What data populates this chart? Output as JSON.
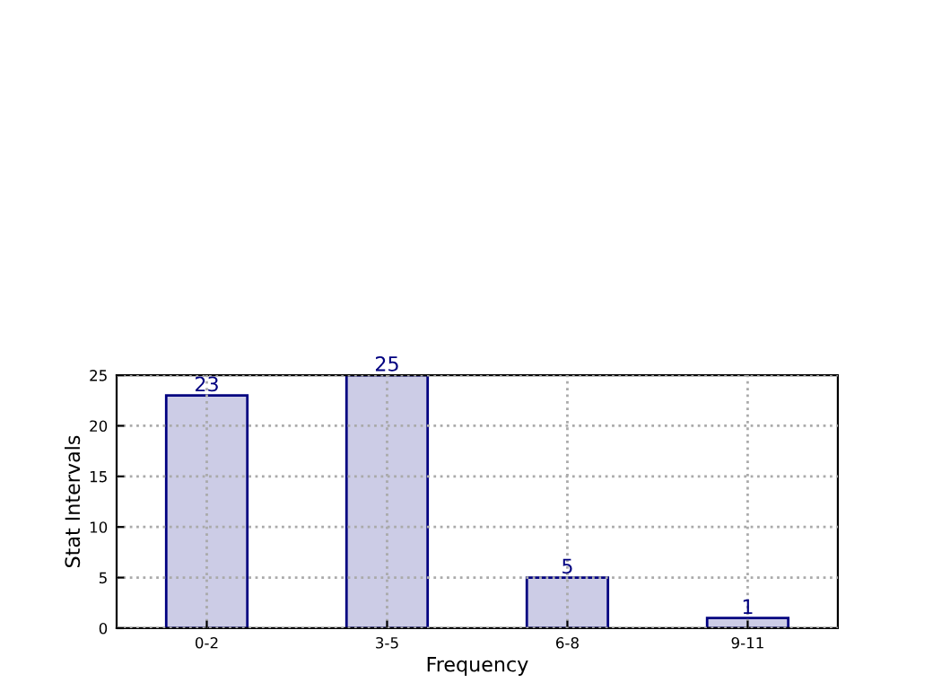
{
  "chart_data": {
    "type": "bar",
    "xlabel": "Frequency",
    "ylabel": "Stat Intervals",
    "categories": [
      "0-2",
      "3-5",
      "6-8",
      "9-11"
    ],
    "values": [
      23,
      25,
      5,
      1
    ],
    "color": "#cccce6",
    "ylim": [
      0,
      25
    ],
    "yticks": [
      0,
      5,
      10,
      15,
      20,
      25
    ],
    "grid": true,
    "data_labels": true
  }
}
